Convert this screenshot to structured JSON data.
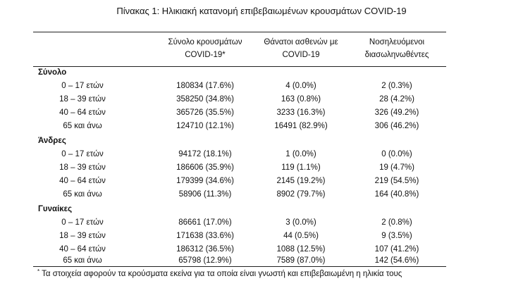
{
  "caption": "Πίνακας 1: Ηλικιακή κατανομή επιβεβαιωμένων κρουσμάτων COVID-19",
  "headers": {
    "cases_line1": "Σύνολο κρουσμάτων",
    "cases_line2": "COVID-19*",
    "deaths_line1": "Θάνατοι ασθενών με",
    "deaths_line2": "COVID-19",
    "icu_line1": "Νοσηλευόμενοι",
    "icu_line2": "διασωληνωθέντες"
  },
  "groups": [
    {
      "label": "Σύνολο",
      "rows": [
        {
          "age": "0 – 17 ετών",
          "cases": "180834 (17.6%)",
          "deaths": "4 (0.0%)",
          "icu": "2 (0.3%)"
        },
        {
          "age": "18 – 39 ετών",
          "cases": "358250 (34.8%)",
          "deaths": "163 (0.8%)",
          "icu": "28 (4.2%)"
        },
        {
          "age": "40 – 64 ετών",
          "cases": "365726 (35.5%)",
          "deaths": "3233 (16.3%)",
          "icu": "326 (49.2%)"
        },
        {
          "age": "65 και άνω",
          "cases": "124710 (12.1%)",
          "deaths": "16491 (82.9%)",
          "icu": "306 (46.2%)"
        }
      ]
    },
    {
      "label": "Άνδρες",
      "rows": [
        {
          "age": "0 – 17 ετών",
          "cases": "94172 (18.1%)",
          "deaths": "1 (0.0%)",
          "icu": "0 (0.0%)"
        },
        {
          "age": "18 – 39 ετών",
          "cases": "186606 (35.9%)",
          "deaths": "119 (1.1%)",
          "icu": "19 (4.7%)"
        },
        {
          "age": "40 – 64 ετών",
          "cases": "179399 (34.6%)",
          "deaths": "2145 (19.2%)",
          "icu": "219 (54.5%)"
        },
        {
          "age": "65 και άνω",
          "cases": "58906 (11.3%)",
          "deaths": "8902 (79.7%)",
          "icu": "164 (40.8%)"
        }
      ]
    },
    {
      "label": "Γυναίκες",
      "rows": [
        {
          "age": "0 – 17 ετών",
          "cases": "86661 (17.0%)",
          "deaths": "3 (0.0%)",
          "icu": "2 (0.8%)"
        },
        {
          "age": "18 – 39 ετών",
          "cases": "171638 (33.6%)",
          "deaths": "44 (0.5%)",
          "icu": "9 (3.5%)"
        },
        {
          "age": "40 – 64 ετών",
          "cases": "186312 (36.5%)",
          "deaths": "1088 (12.5%)",
          "icu": "107 (41.2%)"
        },
        {
          "age": "65 και άνω",
          "cases": "65798 (12.9%)",
          "deaths": "7589 (87.0%)",
          "icu": "142 (54.6%)"
        }
      ]
    }
  ],
  "footnote": {
    "marker": "*",
    "text": "Τα στοιχεία αφορούν τα κρούσματα εκείνα για τα οποία είναι γνωστή και επιβεβαιωμένη η ηλικία τους"
  }
}
